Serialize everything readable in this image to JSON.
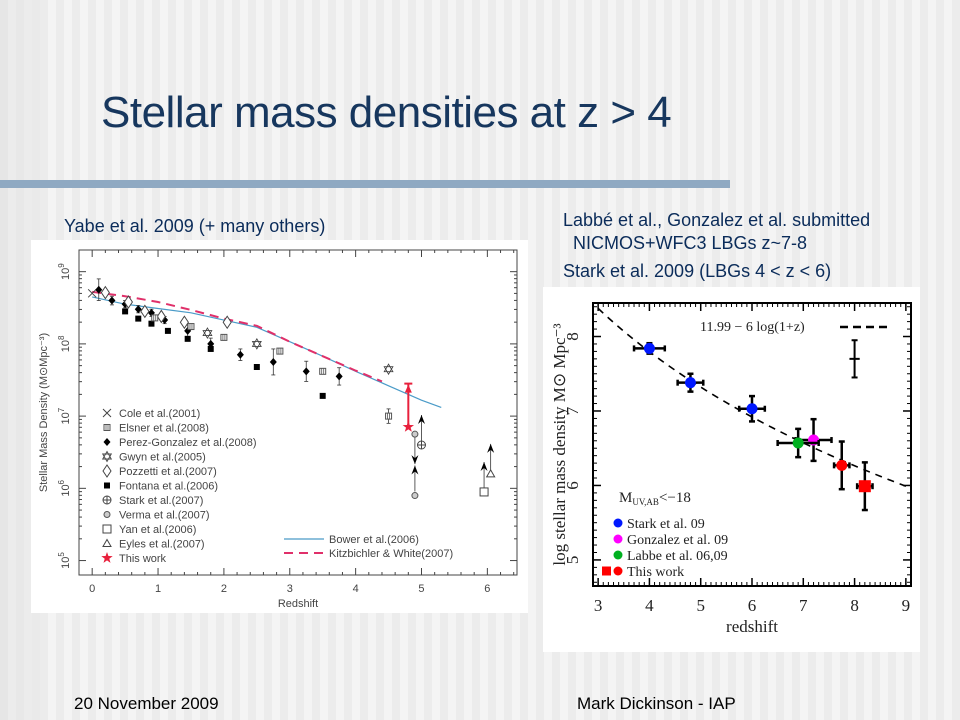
{
  "slide": {
    "title": "Stellar mass densities at z > 4",
    "left_caption": "Yabe et al. 2009 (+ many others)",
    "right_caption_lines": [
      "Labbé et al., Gonzalez et al. submitted",
      "  NICMOS+WFC3 LBGs z~7-8",
      "Stark et al. 2009 (LBGs 4 < z < 6)"
    ],
    "footer_left": "20 November 2009",
    "footer_right": "Mark Dickinson - IAP"
  },
  "chart_data": [
    {
      "type": "scatter",
      "title": "",
      "xlabel": "Redshift",
      "ylabel": "Stellar Mass Density (M⊙Mpc⁻³)",
      "xlim": [
        -0.2,
        6.45
      ],
      "ylim_log10": [
        4.8,
        9.3
      ],
      "yscale": "log",
      "xticks": [
        "0",
        "1",
        "2",
        "3",
        "4",
        "5",
        "6"
      ],
      "yticks": [
        "10^5",
        "10^6",
        "10^7",
        "10^8",
        "10^9"
      ],
      "legend_placement": "bottom-left",
      "legend": [
        {
          "label": "Cole et al.(2001)",
          "marker": "x"
        },
        {
          "label": "Elsner et al.(2008)",
          "marker": "barred-square"
        },
        {
          "label": "Perez-Gonzalez et al.(2008)",
          "marker": "filled-diamond"
        },
        {
          "label": "Gwyn et al.(2005)",
          "marker": "star-of-david"
        },
        {
          "label": "Pozzetti et al.(2007)",
          "marker": "open-diamond"
        },
        {
          "label": "Fontana et al.(2006)",
          "marker": "filled-square"
        },
        {
          "label": "Stark et al.(2007)",
          "marker": "circle-plus"
        },
        {
          "label": "Verma et al.(2007)",
          "marker": "small-circle"
        },
        {
          "label": "Yan et al.(2006)",
          "marker": "open-square"
        },
        {
          "label": "Eyles et al.(2007)",
          "marker": "open-triangle"
        },
        {
          "label": "This work",
          "marker": "red-star"
        }
      ],
      "line_legend_placement": "bottom-right",
      "models": [
        {
          "name": "Bower et al.(2006)",
          "style": "solid",
          "color": "#4a9bc8",
          "x": [
            0.0,
            0.5,
            1.0,
            1.5,
            2.0,
            2.5,
            3.0,
            3.5,
            4.0,
            4.5,
            5.0,
            5.3
          ],
          "log_y": [
            8.65,
            8.55,
            8.49,
            8.43,
            8.33,
            8.23,
            8.03,
            7.83,
            7.62,
            7.42,
            7.22,
            7.12
          ]
        },
        {
          "name": "Kitzbichler & White(2007)",
          "style": "dashed",
          "color": "#e0306a",
          "x": [
            0.0,
            0.5,
            1.0,
            1.5,
            2.0,
            2.5,
            3.0,
            3.5,
            4.0,
            4.4
          ],
          "log_y": [
            8.72,
            8.66,
            8.58,
            8.47,
            8.35,
            8.25,
            8.03,
            7.83,
            7.63,
            7.48
          ]
        }
      ],
      "points": [
        {
          "series": "Cole et al.(2001)",
          "x": 0.0,
          "log_y": 8.7
        },
        {
          "series": "Perez-Gonzalez et al.(2008)",
          "x": 0.1,
          "log_y": 8.75,
          "err_lo": 0.15,
          "err_hi": 0.15
        },
        {
          "series": "Perez-Gonzalez et al.(2008)",
          "x": 0.3,
          "log_y": 8.6,
          "err_lo": 0.06,
          "err_hi": 0.06
        },
        {
          "series": "Perez-Gonzalez et al.(2008)",
          "x": 0.5,
          "log_y": 8.55,
          "err_lo": 0.05,
          "err_hi": 0.05
        },
        {
          "series": "Perez-Gonzalez et al.(2008)",
          "x": 0.7,
          "log_y": 8.48,
          "err_lo": 0.05,
          "err_hi": 0.05
        },
        {
          "series": "Perez-Gonzalez et al.(2008)",
          "x": 0.9,
          "log_y": 8.43,
          "err_lo": 0.05,
          "err_hi": 0.05
        },
        {
          "series": "Perez-Gonzalez et al.(2008)",
          "x": 1.1,
          "log_y": 8.33,
          "err_lo": 0.05,
          "err_hi": 0.05
        },
        {
          "series": "Perez-Gonzalez et al.(2008)",
          "x": 1.45,
          "log_y": 8.18,
          "err_lo": 0.08,
          "err_hi": 0.08
        },
        {
          "series": "Perez-Gonzalez et al.(2008)",
          "x": 1.8,
          "log_y": 8.0,
          "err_lo": 0.08,
          "err_hi": 0.08
        },
        {
          "series": "Perez-Gonzalez et al.(2008)",
          "x": 2.25,
          "log_y": 7.85,
          "err_lo": 0.08,
          "err_hi": 0.08
        },
        {
          "series": "Perez-Gonzalez et al.(2008)",
          "x": 2.75,
          "log_y": 7.75,
          "err_lo": 0.18,
          "err_hi": 0.18
        },
        {
          "series": "Perez-Gonzalez et al.(2008)",
          "x": 3.25,
          "log_y": 7.62,
          "err_lo": 0.14,
          "err_hi": 0.14
        },
        {
          "series": "Perez-Gonzalez et al.(2008)",
          "x": 3.75,
          "log_y": 7.55,
          "err_lo": 0.12,
          "err_hi": 0.12
        },
        {
          "series": "Fontana et al.(2006)",
          "x": 0.5,
          "log_y": 8.45
        },
        {
          "series": "Fontana et al.(2006)",
          "x": 0.7,
          "log_y": 8.35
        },
        {
          "series": "Fontana et al.(2006)",
          "x": 0.9,
          "log_y": 8.28
        },
        {
          "series": "Fontana et al.(2006)",
          "x": 1.15,
          "log_y": 8.18
        },
        {
          "series": "Fontana et al.(2006)",
          "x": 1.45,
          "log_y": 8.07
        },
        {
          "series": "Fontana et al.(2006)",
          "x": 1.8,
          "log_y": 7.93
        },
        {
          "series": "Fontana et al.(2006)",
          "x": 2.5,
          "log_y": 7.68
        },
        {
          "series": "Fontana et al.(2006)",
          "x": 3.5,
          "log_y": 7.28
        },
        {
          "series": "Pozzetti et al.(2007)",
          "x": 0.2,
          "log_y": 8.71
        },
        {
          "series": "Pozzetti et al.(2007)",
          "x": 0.55,
          "log_y": 8.58
        },
        {
          "series": "Pozzetti et al.(2007)",
          "x": 0.8,
          "log_y": 8.45
        },
        {
          "series": "Pozzetti et al.(2007)",
          "x": 1.05,
          "log_y": 8.38
        },
        {
          "series": "Pozzetti et al.(2007)",
          "x": 1.4,
          "log_y": 8.3
        },
        {
          "series": "Pozzetti et al.(2007)",
          "x": 2.05,
          "log_y": 8.3
        },
        {
          "series": "Elsner et al.(2008)",
          "x": 0.95,
          "log_y": 8.36
        },
        {
          "series": "Elsner et al.(2008)",
          "x": 1.5,
          "log_y": 8.24
        },
        {
          "series": "Elsner et al.(2008)",
          "x": 2.0,
          "log_y": 8.09
        },
        {
          "series": "Elsner et al.(2008)",
          "x": 2.85,
          "log_y": 7.9
        },
        {
          "series": "Elsner et al.(2008)",
          "x": 3.5,
          "log_y": 7.62
        },
        {
          "series": "Elsner et al.(2008)",
          "x": 4.5,
          "log_y": 7.0,
          "err_lo": 0.1,
          "err_hi": 0.1
        },
        {
          "series": "Gwyn et al.(2005)",
          "x": 1.75,
          "log_y": 8.15
        },
        {
          "series": "Gwyn et al.(2005)",
          "x": 2.5,
          "log_y": 8.0
        },
        {
          "series": "Gwyn et al.(2005)",
          "x": 4.5,
          "log_y": 7.65
        },
        {
          "series": "This work",
          "x": 4.8,
          "log_y": 6.85,
          "err_hi_to": 7.45
        },
        {
          "series": "Verma et al.(2007)",
          "x": 4.9,
          "log_y": 6.75,
          "upper_limit": true
        },
        {
          "series": "Stark et al.(2007)",
          "x": 5.0,
          "log_y": 6.6,
          "lower_limit": true
        },
        {
          "series": "Verma et al.(2007)",
          "x": 4.9,
          "log_y": 5.9,
          "lower_limit": true
        },
        {
          "series": "Yan et al.(2006)",
          "x": 5.95,
          "log_y": 5.95,
          "lower_limit": true
        },
        {
          "series": "Eyles et al.(2007)",
          "x": 6.05,
          "log_y": 6.2,
          "lower_limit": true
        }
      ]
    },
    {
      "type": "scatter",
      "title": "",
      "xlabel": "redshift",
      "ylabel": "log stellar mass density M⊙ Mpc⁻³",
      "xlim": [
        2.9,
        9.1
      ],
      "ylim": [
        4.65,
        8.45
      ],
      "xticks": [
        "3",
        "4",
        "5",
        "6",
        "7",
        "8",
        "9"
      ],
      "yticks": [
        "5",
        "6",
        "7",
        "8"
      ],
      "annotation": "M_UV,AB<−18",
      "fit_line": {
        "label": "11.99 − 6 log(1+z)",
        "style": "dashed",
        "intercept": 11.99,
        "slope": -6
      },
      "typical_error_bar": {
        "x": 8.0,
        "y": 7.7,
        "err_y": 0.25,
        "err_x": 0.1
      },
      "legend_placement": "bottom-left",
      "series": [
        {
          "name": "Stark et al. 09",
          "color": "#0018ff",
          "points": [
            {
              "x": 4.0,
              "log_y": 7.84,
              "err_x": 0.3,
              "err_y": 0.07
            },
            {
              "x": 4.8,
              "log_y": 7.38,
              "err_x": 0.25,
              "err_y": 0.12
            },
            {
              "x": 6.0,
              "log_y": 7.03,
              "err_x": 0.25,
              "err_y": 0.17
            }
          ]
        },
        {
          "name": "Gonzalez et al. 09",
          "color": "#ff00ff",
          "points": [
            {
              "x": 7.2,
              "log_y": 6.61,
              "err_x": 0.35,
              "err_y": 0.28
            }
          ]
        },
        {
          "name": "Labbe et al. 06,09",
          "color": "#00b020",
          "points": [
            {
              "x": 6.9,
              "log_y": 6.57,
              "err_x": 0.4,
              "err_y": 0.19
            }
          ]
        },
        {
          "name": "This work",
          "color": "#ff0000",
          "points": [
            {
              "x": 7.75,
              "log_y": 6.27,
              "err_x": 0.15,
              "err_y": 0.32,
              "marker": "circle"
            },
            {
              "x": 8.2,
              "log_y": 5.99,
              "err_x": 0.15,
              "err_y": 0.32,
              "marker": "square"
            }
          ]
        }
      ]
    }
  ]
}
